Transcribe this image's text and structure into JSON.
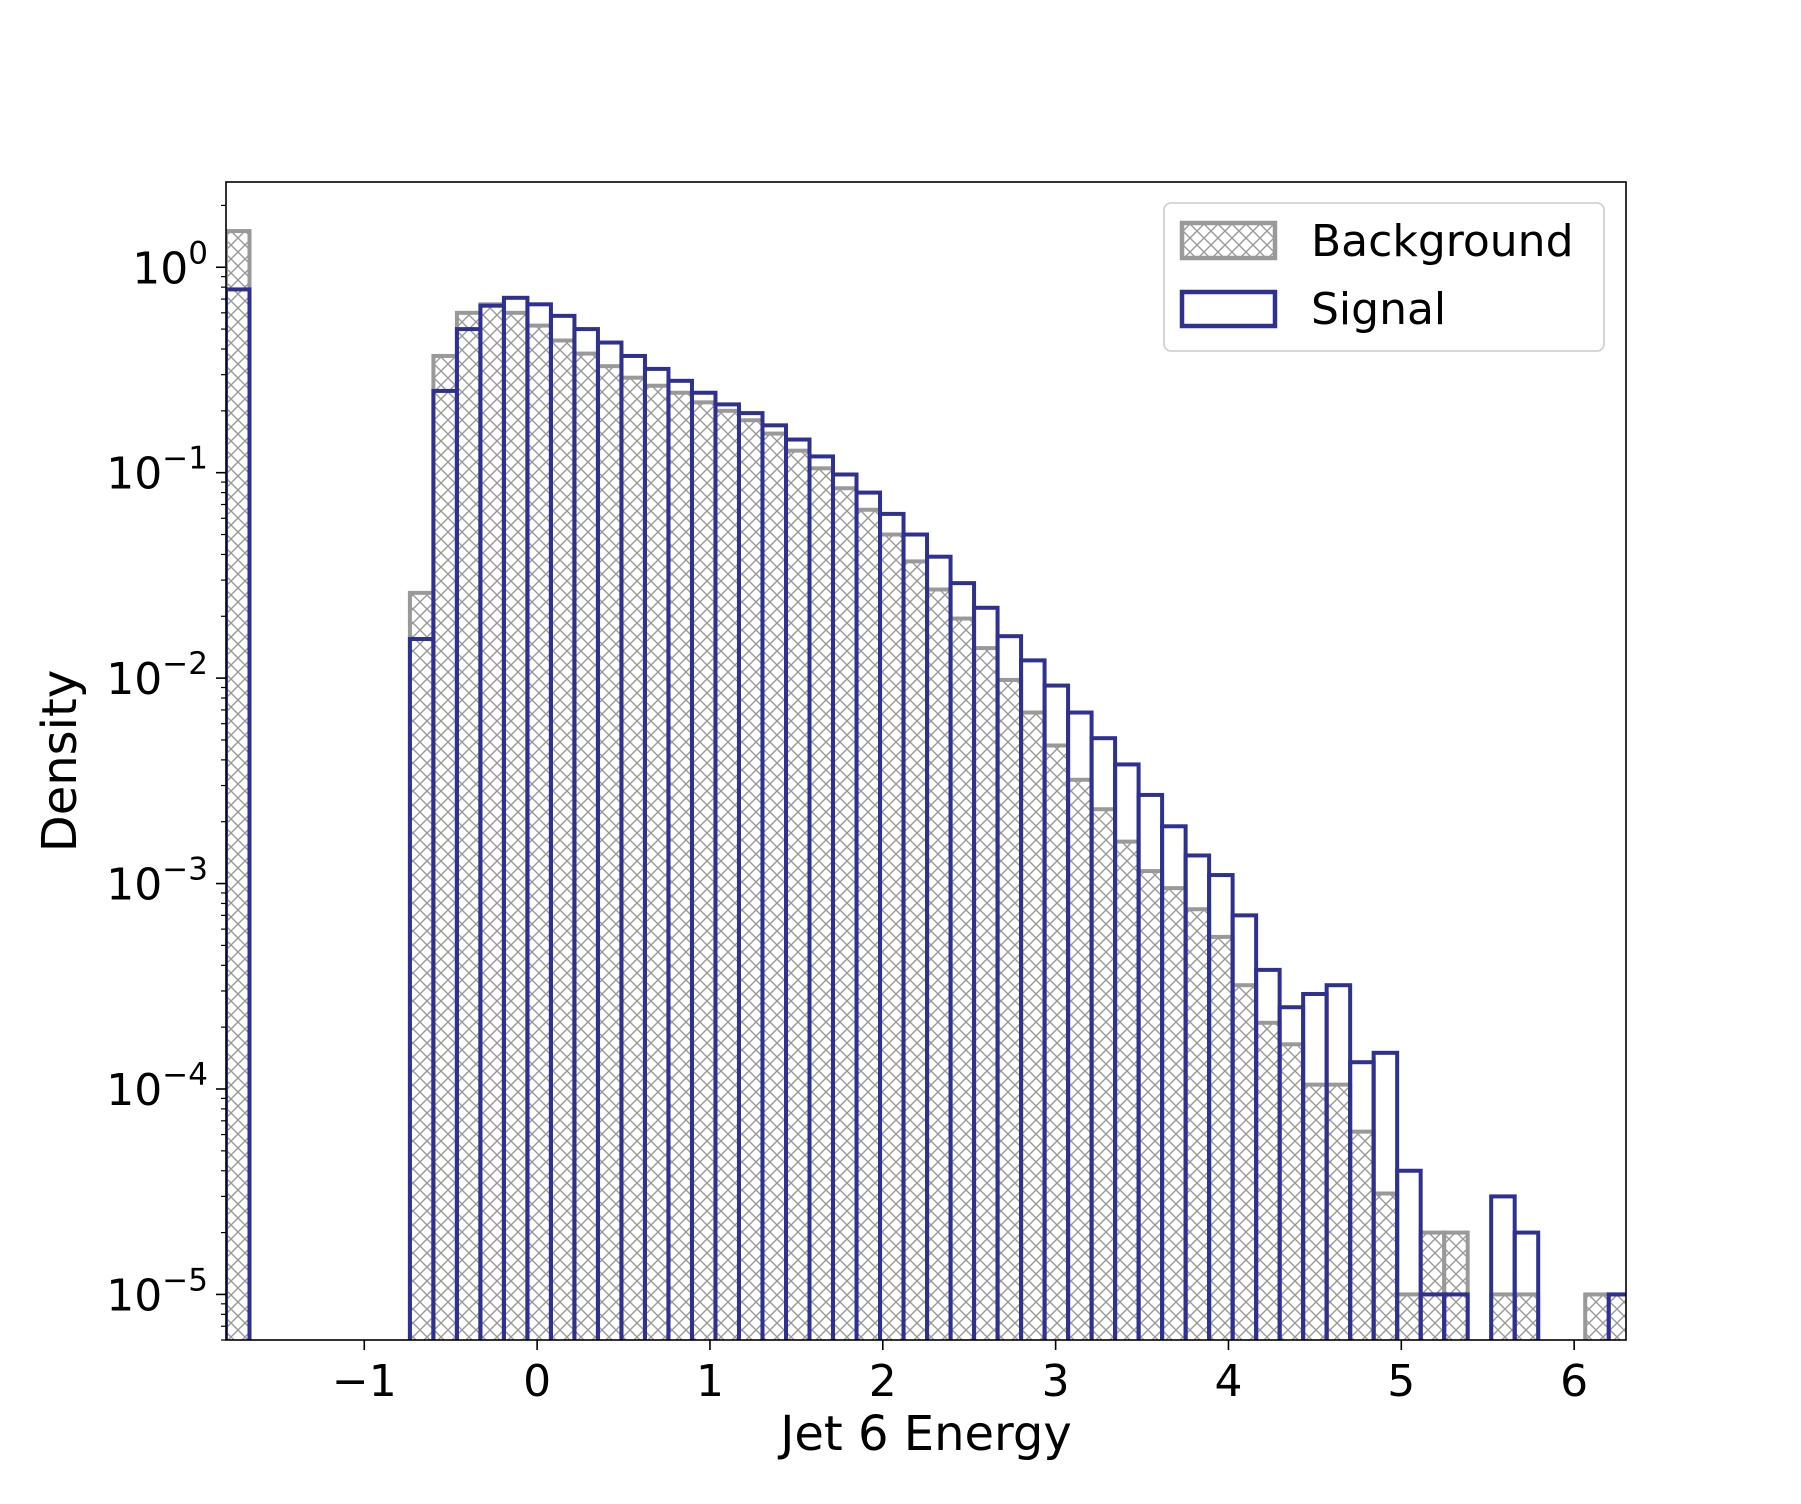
{
  "chart_data": {
    "type": "histogram",
    "xlabel": "Jet 6 Energy",
    "ylabel": "Density",
    "yscale": "log",
    "xlim": [
      -1.8,
      6.3
    ],
    "ylim": [
      6e-06,
      2.6
    ],
    "x_ticks": [
      -1,
      0,
      1,
      2,
      3,
      4,
      5,
      6
    ],
    "x_tick_labels": [
      "−1",
      "0",
      "1",
      "2",
      "3",
      "4",
      "5",
      "6"
    ],
    "y_ticks": [
      1,
      0.1,
      0.01,
      0.001,
      0.0001,
      1e-05
    ],
    "y_tick_labels": [
      {
        "base": "10",
        "exp": "0"
      },
      {
        "base": "10",
        "exp": "−1"
      },
      {
        "base": "10",
        "exp": "−2"
      },
      {
        "base": "10",
        "exp": "−3"
      },
      {
        "base": "10",
        "exp": "−4"
      },
      {
        "base": "10",
        "exp": "−5"
      }
    ],
    "legend": {
      "position": "top-right"
    },
    "bin_width": 0.1358,
    "series": [
      {
        "name": "Background",
        "style": "hatched",
        "color": "#999999",
        "bins": [
          {
            "x0": -1.8,
            "x1": -1.664,
            "y": 1.5
          },
          {
            "x0": -0.736,
            "x1": -0.6,
            "y": 0.026
          },
          {
            "x0": -0.6,
            "x1": -0.464,
            "y": 0.37
          },
          {
            "x0": -0.464,
            "x1": -0.328,
            "y": 0.6
          },
          {
            "x0": -0.328,
            "x1": -0.192,
            "y": 0.66
          },
          {
            "x0": -0.192,
            "x1": -0.056,
            "y": 0.6
          },
          {
            "x0": -0.056,
            "x1": 0.08,
            "y": 0.52
          },
          {
            "x0": 0.08,
            "x1": 0.216,
            "y": 0.44
          },
          {
            "x0": 0.216,
            "x1": 0.352,
            "y": 0.38
          },
          {
            "x0": 0.352,
            "x1": 0.488,
            "y": 0.33
          },
          {
            "x0": 0.488,
            "x1": 0.624,
            "y": 0.29
          },
          {
            "x0": 0.624,
            "x1": 0.76,
            "y": 0.265
          },
          {
            "x0": 0.76,
            "x1": 0.896,
            "y": 0.245
          },
          {
            "x0": 0.896,
            "x1": 1.032,
            "y": 0.22
          },
          {
            "x0": 1.032,
            "x1": 1.168,
            "y": 0.2
          },
          {
            "x0": 1.168,
            "x1": 1.304,
            "y": 0.18
          },
          {
            "x0": 1.304,
            "x1": 1.44,
            "y": 0.155
          },
          {
            "x0": 1.44,
            "x1": 1.576,
            "y": 0.128
          },
          {
            "x0": 1.576,
            "x1": 1.712,
            "y": 0.105
          },
          {
            "x0": 1.712,
            "x1": 1.848,
            "y": 0.084
          },
          {
            "x0": 1.848,
            "x1": 1.984,
            "y": 0.066
          },
          {
            "x0": 1.984,
            "x1": 2.12,
            "y": 0.05
          },
          {
            "x0": 2.12,
            "x1": 2.256,
            "y": 0.037
          },
          {
            "x0": 2.256,
            "x1": 2.392,
            "y": 0.027
          },
          {
            "x0": 2.392,
            "x1": 2.528,
            "y": 0.0195
          },
          {
            "x0": 2.528,
            "x1": 2.664,
            "y": 0.014
          },
          {
            "x0": 2.664,
            "x1": 2.8,
            "y": 0.0098
          },
          {
            "x0": 2.8,
            "x1": 2.936,
            "y": 0.0068
          },
          {
            "x0": 2.936,
            "x1": 3.072,
            "y": 0.0047
          },
          {
            "x0": 3.072,
            "x1": 3.208,
            "y": 0.0032
          },
          {
            "x0": 3.208,
            "x1": 3.344,
            "y": 0.0023
          },
          {
            "x0": 3.344,
            "x1": 3.48,
            "y": 0.0016
          },
          {
            "x0": 3.48,
            "x1": 3.616,
            "y": 0.00115
          },
          {
            "x0": 3.616,
            "x1": 3.752,
            "y": 0.00095
          },
          {
            "x0": 3.752,
            "x1": 3.888,
            "y": 0.00075
          },
          {
            "x0": 3.888,
            "x1": 4.024,
            "y": 0.00055
          },
          {
            "x0": 4.024,
            "x1": 4.16,
            "y": 0.00032
          },
          {
            "x0": 4.16,
            "x1": 4.296,
            "y": 0.00021
          },
          {
            "x0": 4.296,
            "x1": 4.432,
            "y": 0.000165
          },
          {
            "x0": 4.432,
            "x1": 4.568,
            "y": 0.000105
          },
          {
            "x0": 4.568,
            "x1": 4.704,
            "y": 0.000105
          },
          {
            "x0": 4.704,
            "x1": 4.84,
            "y": 6.2e-05
          },
          {
            "x0": 4.84,
            "x1": 4.976,
            "y": 3.1e-05
          },
          {
            "x0": 4.976,
            "x1": 5.112,
            "y": 1e-05
          },
          {
            "x0": 5.112,
            "x1": 5.248,
            "y": 2e-05
          },
          {
            "x0": 5.248,
            "x1": 5.384,
            "y": 2e-05
          },
          {
            "x0": 5.52,
            "x1": 5.656,
            "y": 1e-05
          },
          {
            "x0": 5.656,
            "x1": 5.792,
            "y": 1e-05
          },
          {
            "x0": 6.064,
            "x1": 6.2,
            "y": 1e-05
          },
          {
            "x0": 6.2,
            "x1": 6.336,
            "y": 1e-05
          }
        ]
      },
      {
        "name": "Signal",
        "style": "step",
        "color": "#2e3192",
        "bins": [
          {
            "x0": -1.8,
            "x1": -1.664,
            "y": 0.78
          },
          {
            "x0": -0.736,
            "x1": -0.6,
            "y": 0.0155
          },
          {
            "x0": -0.6,
            "x1": -0.464,
            "y": 0.25
          },
          {
            "x0": -0.464,
            "x1": -0.328,
            "y": 0.5
          },
          {
            "x0": -0.328,
            "x1": -0.192,
            "y": 0.65
          },
          {
            "x0": -0.192,
            "x1": -0.056,
            "y": 0.71
          },
          {
            "x0": -0.056,
            "x1": 0.08,
            "y": 0.66
          },
          {
            "x0": 0.08,
            "x1": 0.216,
            "y": 0.58
          },
          {
            "x0": 0.216,
            "x1": 0.352,
            "y": 0.5
          },
          {
            "x0": 0.352,
            "x1": 0.488,
            "y": 0.43
          },
          {
            "x0": 0.488,
            "x1": 0.624,
            "y": 0.37
          },
          {
            "x0": 0.624,
            "x1": 0.76,
            "y": 0.32
          },
          {
            "x0": 0.76,
            "x1": 0.896,
            "y": 0.28
          },
          {
            "x0": 0.896,
            "x1": 1.032,
            "y": 0.245
          },
          {
            "x0": 1.032,
            "x1": 1.168,
            "y": 0.215
          },
          {
            "x0": 1.168,
            "x1": 1.304,
            "y": 0.195
          },
          {
            "x0": 1.304,
            "x1": 1.44,
            "y": 0.17
          },
          {
            "x0": 1.44,
            "x1": 1.576,
            "y": 0.145
          },
          {
            "x0": 1.576,
            "x1": 1.712,
            "y": 0.12
          },
          {
            "x0": 1.712,
            "x1": 1.848,
            "y": 0.098
          },
          {
            "x0": 1.848,
            "x1": 1.984,
            "y": 0.08
          },
          {
            "x0": 1.984,
            "x1": 2.12,
            "y": 0.063
          },
          {
            "x0": 2.12,
            "x1": 2.256,
            "y": 0.05
          },
          {
            "x0": 2.256,
            "x1": 2.392,
            "y": 0.039
          },
          {
            "x0": 2.392,
            "x1": 2.528,
            "y": 0.029
          },
          {
            "x0": 2.528,
            "x1": 2.664,
            "y": 0.022
          },
          {
            "x0": 2.664,
            "x1": 2.8,
            "y": 0.016
          },
          {
            "x0": 2.8,
            "x1": 2.936,
            "y": 0.0122
          },
          {
            "x0": 2.936,
            "x1": 3.072,
            "y": 0.0092
          },
          {
            "x0": 3.072,
            "x1": 3.208,
            "y": 0.0068
          },
          {
            "x0": 3.208,
            "x1": 3.344,
            "y": 0.0051
          },
          {
            "x0": 3.344,
            "x1": 3.48,
            "y": 0.0038
          },
          {
            "x0": 3.48,
            "x1": 3.616,
            "y": 0.0027
          },
          {
            "x0": 3.616,
            "x1": 3.752,
            "y": 0.0019
          },
          {
            "x0": 3.752,
            "x1": 3.888,
            "y": 0.00137
          },
          {
            "x0": 3.888,
            "x1": 4.024,
            "y": 0.0011
          },
          {
            "x0": 4.024,
            "x1": 4.16,
            "y": 0.0007
          },
          {
            "x0": 4.16,
            "x1": 4.296,
            "y": 0.00038
          },
          {
            "x0": 4.296,
            "x1": 4.432,
            "y": 0.00025
          },
          {
            "x0": 4.432,
            "x1": 4.568,
            "y": 0.00029
          },
          {
            "x0": 4.568,
            "x1": 4.704,
            "y": 0.00032
          },
          {
            "x0": 4.704,
            "x1": 4.84,
            "y": 0.000135
          },
          {
            "x0": 4.84,
            "x1": 4.976,
            "y": 0.00015
          },
          {
            "x0": 4.976,
            "x1": 5.112,
            "y": 4e-05
          },
          {
            "x0": 5.112,
            "x1": 5.248,
            "y": 1e-05
          },
          {
            "x0": 5.248,
            "x1": 5.384,
            "y": 1e-05
          },
          {
            "x0": 5.52,
            "x1": 5.656,
            "y": 3e-05
          },
          {
            "x0": 5.656,
            "x1": 5.792,
            "y": 2e-05
          },
          {
            "x0": 6.2,
            "x1": 6.336,
            "y": 1e-05
          }
        ]
      }
    ]
  }
}
